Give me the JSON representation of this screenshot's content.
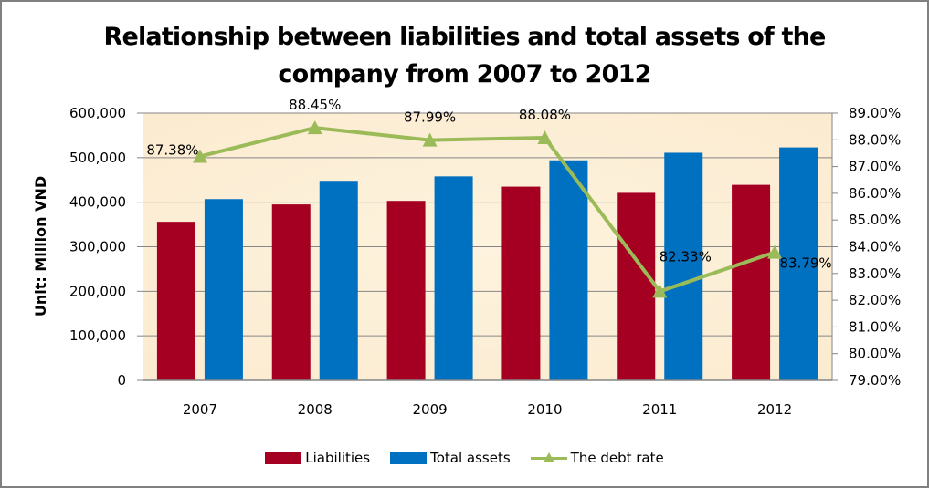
{
  "chart_data": {
    "type": "bar",
    "title_lines": [
      "Relationship between liabilities and total assets of the",
      "company from 2007 to 2012"
    ],
    "xlabel": "",
    "ylabel": "Unit: Million VND",
    "categories": [
      "2007",
      "2008",
      "2009",
      "2010",
      "2011",
      "2012"
    ],
    "series": [
      {
        "name": "Liabilities",
        "kind": "bar",
        "axis": "left",
        "color": "#A50021",
        "values": [
          356000,
          395000,
          403000,
          435000,
          421000,
          439000
        ]
      },
      {
        "name": "Total assets",
        "kind": "bar",
        "axis": "left",
        "color": "#0070C0",
        "values": [
          407000,
          448000,
          458000,
          494000,
          511000,
          523000
        ]
      },
      {
        "name": "The debt rate",
        "kind": "line",
        "axis": "right",
        "color": "#9BBB59",
        "marker": "triangle",
        "values": [
          87.38,
          88.45,
          87.99,
          88.08,
          82.33,
          83.79
        ],
        "labels": [
          "87.38%",
          "88.45%",
          "87.99%",
          "88.08%",
          "82.33%",
          "83.79%"
        ]
      }
    ],
    "ylim": [
      0,
      600000
    ],
    "yticks": [
      "0",
      "100,000",
      "200,000",
      "300,000",
      "400,000",
      "500,000",
      "600,000"
    ],
    "y2lim": [
      79,
      89
    ],
    "y2ticks": [
      "79.00%",
      "80.00%",
      "81.00%",
      "82.00%",
      "83.00%",
      "84.00%",
      "85.00%",
      "86.00%",
      "87.00%",
      "88.00%",
      "89.00%"
    ],
    "grid": true,
    "legend": "bottom",
    "plot_background": "#FDF0D8"
  }
}
